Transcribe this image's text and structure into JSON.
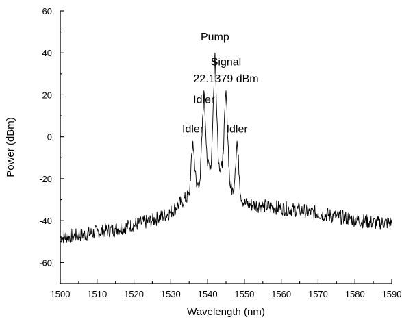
{
  "chart_data": {
    "type": "line",
    "title": "",
    "xlabel": "Wavelength (nm)",
    "ylabel": "Power (dBm)",
    "xlim": [
      1500,
      1590
    ],
    "ylim": [
      -70,
      60
    ],
    "x_ticks": [
      1500,
      1510,
      1520,
      1530,
      1540,
      1550,
      1560,
      1570,
      1580,
      1590
    ],
    "y_ticks": [
      -60,
      -40,
      -20,
      0,
      20,
      40,
      60
    ],
    "grid": false,
    "series": [
      {
        "x": [
          1500,
          1505,
          1510,
          1515,
          1520,
          1525,
          1530,
          1533,
          1535,
          1536,
          1537,
          1538,
          1539,
          1540,
          1541,
          1542,
          1543,
          1544,
          1545,
          1546,
          1547,
          1548,
          1549,
          1550,
          1555,
          1560,
          1565,
          1570,
          1575,
          1580,
          1585,
          1590
        ],
        "y": [
          -48,
          -47,
          -45.5,
          -44,
          -42,
          -40,
          -36,
          -31,
          -28,
          -2,
          -24,
          -20,
          22,
          -14,
          -13,
          40,
          -13,
          -15,
          22,
          -22,
          -27,
          -2,
          -28,
          -32,
          -33,
          -34,
          -35,
          -36.5,
          -38,
          -39.5,
          -41,
          -41
        ]
      }
    ],
    "annotations": [
      {
        "text": "Pump",
        "x": 1542,
        "y": 46
      },
      {
        "text": "Signal",
        "x": 1545,
        "y": 34
      },
      {
        "text": "22.1379 dBm",
        "x": 1545,
        "y": 26
      },
      {
        "text": "Idler",
        "x": 1539,
        "y": 16
      },
      {
        "text": "Idler",
        "x": 1536,
        "y": 2
      },
      {
        "text": "Idler",
        "x": 1548,
        "y": 2
      }
    ]
  }
}
